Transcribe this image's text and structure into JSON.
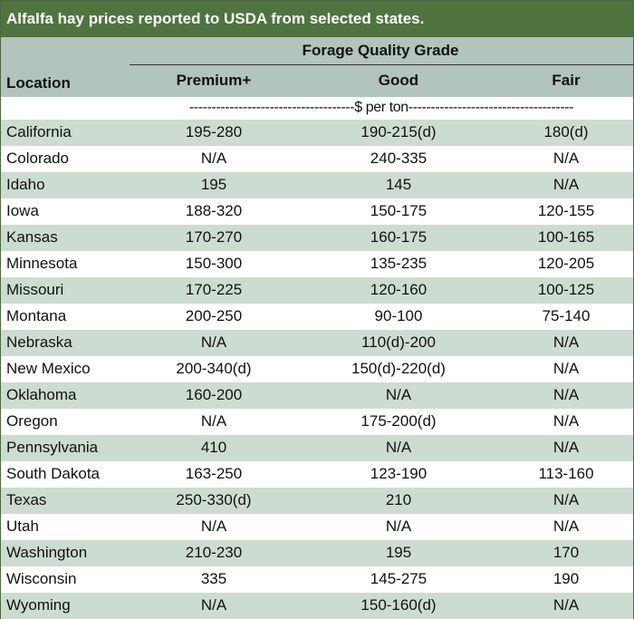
{
  "title": "Alfalfa hay prices reported to USDA from selected states.",
  "header": {
    "group_label": "Forage Quality Grade",
    "location_label": "Location",
    "columns": [
      "Premium+",
      "Good",
      "Fair"
    ]
  },
  "unit_row": "-------------------------------------$ per ton-------------------------------------",
  "rows": [
    {
      "location": "California",
      "premium": "195-280",
      "good": "190-215(d)",
      "fair": "180(d)"
    },
    {
      "location": "Colorado",
      "premium": "N/A",
      "good": "240-335",
      "fair": "N/A"
    },
    {
      "location": "Idaho",
      "premium": "195",
      "good": "145",
      "fair": "N/A"
    },
    {
      "location": "Iowa",
      "premium": "188-320",
      "good": "150-175",
      "fair": "120-155"
    },
    {
      "location": "Kansas",
      "premium": "170-270",
      "good": "160-175",
      "fair": "100-165"
    },
    {
      "location": "Minnesota",
      "premium": "150-300",
      "good": "135-235",
      "fair": "120-205"
    },
    {
      "location": "Missouri",
      "premium": "170-225",
      "good": "120-160",
      "fair": "100-125"
    },
    {
      "location": "Montana",
      "premium": "200-250",
      "good": "90-100",
      "fair": "75-140"
    },
    {
      "location": "Nebraska",
      "premium": "N/A",
      "good": "110(d)-200",
      "fair": "N/A"
    },
    {
      "location": "New Mexico",
      "premium": "200-340(d)",
      "good": "150(d)-220(d)",
      "fair": "N/A"
    },
    {
      "location": "Oklahoma",
      "premium": "160-200",
      "good": "N/A",
      "fair": "N/A"
    },
    {
      "location": "Oregon",
      "premium": "N/A",
      "good": "175-200(d)",
      "fair": "N/A"
    },
    {
      "location": "Pennsylvania",
      "premium": "410",
      "good": "N/A",
      "fair": "N/A"
    },
    {
      "location": "South Dakota",
      "premium": "163-250",
      "good": "123-190",
      "fair": "113-160"
    },
    {
      "location": "Texas",
      "premium": "250-330(d)",
      "good": "210",
      "fair": "N/A"
    },
    {
      "location": "Utah",
      "premium": "N/A",
      "good": "N/A",
      "fair": "N/A"
    },
    {
      "location": "Washington",
      "premium": "210-230",
      "good": "195",
      "fair": "170"
    },
    {
      "location": "Wisconsin",
      "premium": "335",
      "good": "145-275",
      "fair": "190"
    },
    {
      "location": "Wyoming",
      "premium": "N/A",
      "good": "150-160(d)",
      "fair": "N/A"
    }
  ],
  "colors": {
    "title_bg": "#4f7440",
    "header_bg": "#b2c4bb",
    "stripe_bg": "#cddcd0"
  }
}
